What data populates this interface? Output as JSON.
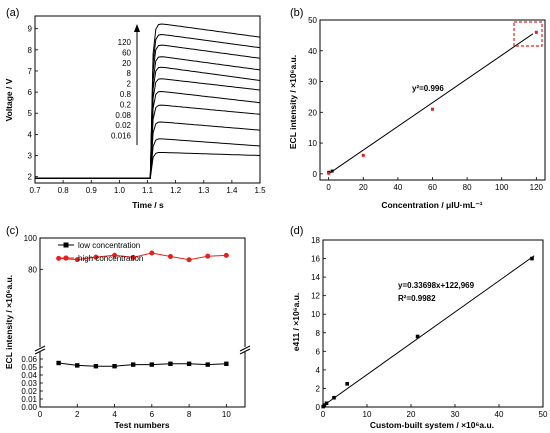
{
  "chart_data": [
    {
      "panel": "(a)",
      "type": "line",
      "xlabel": "Time / s",
      "ylabel": "Voltage / V",
      "xlim": [
        0.7,
        1.5
      ],
      "ylim": [
        1.7,
        9.6
      ],
      "xticks": [
        "0.7",
        "0.8",
        "0.9",
        "1.0",
        "1.1",
        "1.2",
        "1.3",
        "1.4",
        "1.5"
      ],
      "yticks": [
        "2",
        "3",
        "4",
        "5",
        "6",
        "7",
        "8",
        "9"
      ],
      "baseline": 1.93,
      "step_time": 1.11,
      "series": [
        {
          "name": "120",
          "peak": 9.25,
          "end": 8.6
        },
        {
          "name": "60",
          "peak": 8.75,
          "end": 8.1
        },
        {
          "name": "20",
          "peak": 8.25,
          "end": 7.6
        },
        {
          "name": "8",
          "peak": 7.7,
          "end": 7.05
        },
        {
          "name": "2",
          "peak": 7.2,
          "end": 6.55
        },
        {
          "name": "0.8",
          "peak": 6.65,
          "end": 6.1
        },
        {
          "name": "0.2",
          "peak": 6.05,
          "end": 5.5
        },
        {
          "name": "0.08",
          "peak": 5.4,
          "end": 4.95
        },
        {
          "name": "0.02",
          "peak": 4.6,
          "end": 4.2
        },
        {
          "name": "0.016",
          "peak": 3.8,
          "end": 3.45
        },
        {
          "name": "",
          "peak": 3.15,
          "end": 3.0
        }
      ]
    },
    {
      "panel": "(b)",
      "type": "scatter",
      "xlabel": "Concentration / μIU·mL⁻¹",
      "ylabel": "ECL intensity / ×10⁶a.u.",
      "xlim": [
        -5,
        125
      ],
      "ylim": [
        -2,
        50
      ],
      "xticks": [
        "0",
        "20",
        "40",
        "60",
        "80",
        "100",
        "120"
      ],
      "yticks": [
        "0",
        "10",
        "20",
        "30",
        "40",
        "50"
      ],
      "points": [
        {
          "x": 0.016,
          "y": 0.5
        },
        {
          "x": 0.08,
          "y": 0.2
        },
        {
          "x": 2,
          "y": 0.9
        },
        {
          "x": 20,
          "y": 6.0
        },
        {
          "x": 60,
          "y": 21.0
        },
        {
          "x": 120,
          "y": 46.0
        }
      ],
      "fit": {
        "x": [
          0,
          118
        ],
        "y": [
          0.0,
          45.5
        ]
      },
      "annotation": "y²=0.996"
    },
    {
      "panel": "(c)",
      "type": "line",
      "xlabel": "Test numbers",
      "ylabel": "ECL intensity / ×10⁶a.u.",
      "xticks": [
        "0",
        "2",
        "4",
        "6",
        "8",
        "10"
      ],
      "yticks_upper": [
        "100",
        "80"
      ],
      "yticks_lower": [
        "0.06",
        "0.05",
        "0.04",
        "0.03",
        "0.02",
        "0.01",
        "0.00"
      ],
      "categories": [
        1,
        2,
        3,
        4,
        5,
        6,
        7,
        8,
        9,
        10
      ],
      "series": [
        {
          "name": "low concentration",
          "color": "#000000",
          "values": [
            0.055,
            0.052,
            0.051,
            0.051,
            0.053,
            0.053,
            0.054,
            0.054,
            0.053,
            0.054
          ]
        },
        {
          "name": "high concentration",
          "color": "#e8201d",
          "values": [
            87,
            86.2,
            87.8,
            89,
            87.6,
            90.4,
            88.2,
            86.1,
            88.4,
            88.9
          ]
        }
      ]
    },
    {
      "panel": "(d)",
      "type": "scatter",
      "xlabel": "Custom-built system / ×10⁶a.u.",
      "ylabel": "e411 / ×10⁶a.u.",
      "xlim": [
        0,
        50
      ],
      "ylim": [
        0,
        18
      ],
      "xticks": [
        "0",
        "10",
        "20",
        "30",
        "40",
        "50"
      ],
      "yticks": [
        "0",
        "2",
        "4",
        "6",
        "8",
        "10",
        "12",
        "14",
        "16",
        "18"
      ],
      "points": [
        {
          "x": 0.05,
          "y": 0.05
        },
        {
          "x": 0.3,
          "y": 0.2
        },
        {
          "x": 0.8,
          "y": 0.4
        },
        {
          "x": 2.5,
          "y": 1.0
        },
        {
          "x": 5.5,
          "y": 2.5
        },
        {
          "x": 21.5,
          "y": 7.6
        },
        {
          "x": 47.5,
          "y": 16.0
        }
      ],
      "fit": {
        "x": [
          0,
          48
        ],
        "y": [
          0.12,
          16.3
        ]
      },
      "annotation_eq": "y=0.33698x+122,969",
      "annotation_r2": "R²=0.9982"
    }
  ]
}
